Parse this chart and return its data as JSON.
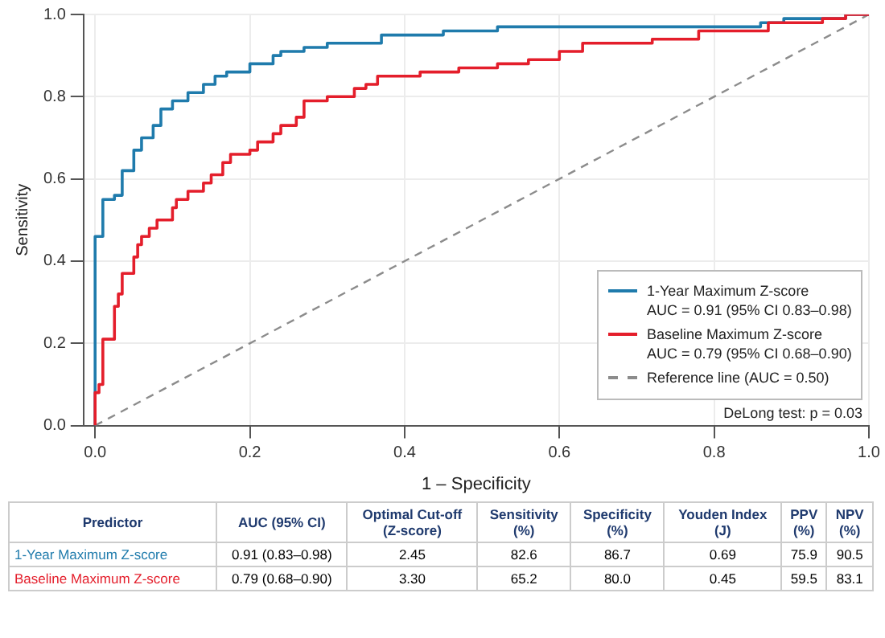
{
  "chart_data": [
    {
      "type": "step",
      "xlabel": "1 – Specificity",
      "ylabel": "Sensitivity",
      "xlim": [
        -0.015,
        1
      ],
      "ylim": [
        0,
        1
      ],
      "xticks": [
        {
          "value": 0,
          "label": "0.0"
        },
        {
          "value": 0.2,
          "label": "0.2"
        },
        {
          "value": 0.4,
          "label": "0.4"
        },
        {
          "value": 0.6,
          "label": "0.6"
        },
        {
          "value": 0.8,
          "label": "0.8"
        },
        {
          "value": 1,
          "label": "1.0"
        }
      ],
      "yticks": [
        {
          "value": 0,
          "label": "0.0"
        },
        {
          "value": 0.2,
          "label": "0.2"
        },
        {
          "value": 0.4,
          "label": "0.4"
        },
        {
          "value": 0.6,
          "label": "0.6"
        },
        {
          "value": 0.8,
          "label": "0.8"
        },
        {
          "value": 1,
          "label": "1.0"
        }
      ],
      "grid": true,
      "legend": "bottom right",
      "marker": "none",
      "annotations": [
        "DeLong test: p = 0.03"
      ],
      "series": [
        {
          "name": "1-Year Maximum Z-score\nAUC = 0.91 (95% CI 0.83–0.98)",
          "color": "#1f7bac",
          "x": [
            0,
            0,
            0.01,
            0.01,
            0.025,
            0.025,
            0.035,
            0.035,
            0.05,
            0.05,
            0.06,
            0.06,
            0.075,
            0.075,
            0.085,
            0.085,
            0.1,
            0.1,
            0.12,
            0.12,
            0.14,
            0.14,
            0.155,
            0.155,
            0.17,
            0.17,
            0.2,
            0.2,
            0.23,
            0.23,
            0.24,
            0.24,
            0.27,
            0.27,
            0.3,
            0.3,
            0.37,
            0.37,
            0.45,
            0.45,
            0.52,
            0.52,
            0.86,
            0.86,
            0.89,
            0.89,
            0.97,
            0.97,
            1
          ],
          "values": [
            0,
            0.46,
            0.46,
            0.55,
            0.55,
            0.56,
            0.56,
            0.62,
            0.62,
            0.67,
            0.67,
            0.7,
            0.7,
            0.73,
            0.73,
            0.77,
            0.77,
            0.79,
            0.79,
            0.81,
            0.81,
            0.83,
            0.83,
            0.85,
            0.85,
            0.86,
            0.86,
            0.88,
            0.88,
            0.9,
            0.9,
            0.91,
            0.91,
            0.92,
            0.92,
            0.93,
            0.93,
            0.95,
            0.95,
            0.96,
            0.96,
            0.97,
            0.97,
            0.98,
            0.98,
            0.99,
            0.99,
            1,
            1
          ]
        },
        {
          "name": "Baseline Maximum Z-score\nAUC = 0.79 (95% CI 0.68–0.90)",
          "color": "#e41e2b",
          "x": [
            0,
            0,
            0.005,
            0.005,
            0.01,
            0.01,
            0.025,
            0.025,
            0.03,
            0.03,
            0.035,
            0.035,
            0.05,
            0.05,
            0.055,
            0.055,
            0.06,
            0.06,
            0.07,
            0.07,
            0.08,
            0.08,
            0.1,
            0.1,
            0.105,
            0.105,
            0.12,
            0.12,
            0.14,
            0.14,
            0.15,
            0.15,
            0.165,
            0.165,
            0.175,
            0.175,
            0.2,
            0.2,
            0.21,
            0.21,
            0.23,
            0.23,
            0.24,
            0.24,
            0.26,
            0.26,
            0.27,
            0.27,
            0.3,
            0.3,
            0.335,
            0.335,
            0.35,
            0.35,
            0.365,
            0.365,
            0.42,
            0.42,
            0.47,
            0.47,
            0.52,
            0.52,
            0.56,
            0.56,
            0.6,
            0.6,
            0.63,
            0.63,
            0.72,
            0.72,
            0.78,
            0.78,
            0.87,
            0.87,
            0.94,
            0.94,
            0.97,
            0.97,
            1
          ],
          "values": [
            0,
            0.08,
            0.08,
            0.1,
            0.1,
            0.21,
            0.21,
            0.29,
            0.29,
            0.32,
            0.32,
            0.37,
            0.37,
            0.41,
            0.41,
            0.44,
            0.44,
            0.46,
            0.46,
            0.48,
            0.48,
            0.5,
            0.5,
            0.53,
            0.53,
            0.55,
            0.55,
            0.57,
            0.57,
            0.59,
            0.59,
            0.61,
            0.61,
            0.64,
            0.64,
            0.66,
            0.66,
            0.67,
            0.67,
            0.69,
            0.69,
            0.71,
            0.71,
            0.73,
            0.73,
            0.75,
            0.75,
            0.79,
            0.79,
            0.8,
            0.8,
            0.82,
            0.82,
            0.83,
            0.83,
            0.85,
            0.85,
            0.86,
            0.86,
            0.87,
            0.87,
            0.88,
            0.88,
            0.89,
            0.89,
            0.91,
            0.91,
            0.93,
            0.93,
            0.94,
            0.94,
            0.96,
            0.96,
            0.98,
            0.98,
            0.99,
            0.99,
            1,
            1
          ]
        },
        {
          "name": "Reference line (AUC = 0.50)",
          "type": "line",
          "line_style": "dashed",
          "color": "#8c8c8c",
          "x": [
            0,
            1
          ],
          "values": [
            0,
            1
          ]
        }
      ]
    },
    {
      "type": "other",
      "ylabel": "Predictor",
      "categories": [
        "AUC (95% CI)",
        "Optimal Cut-off\n(Z-score)",
        "Sensitivity\n(%)",
        "Specificity\n(%)",
        "Youden Index\n(J)",
        "PPV\n(%)",
        "NPV\n(%)"
      ],
      "y_categories": [
        "1-Year Maximum Z-score",
        "Baseline Maximum Z-score"
      ],
      "colors": [
        "#1f7bac",
        "#e41e2b"
      ],
      "cell_labels": [
        [
          "0.91 (0.83–0.98)",
          "2.45",
          "82.6",
          "86.7",
          "0.69",
          "75.9",
          "90.5"
        ],
        [
          "0.79 (0.68–0.90)",
          "3.30",
          "65.2",
          "80.0",
          "0.45",
          "59.5",
          "83.1"
        ]
      ]
    }
  ]
}
